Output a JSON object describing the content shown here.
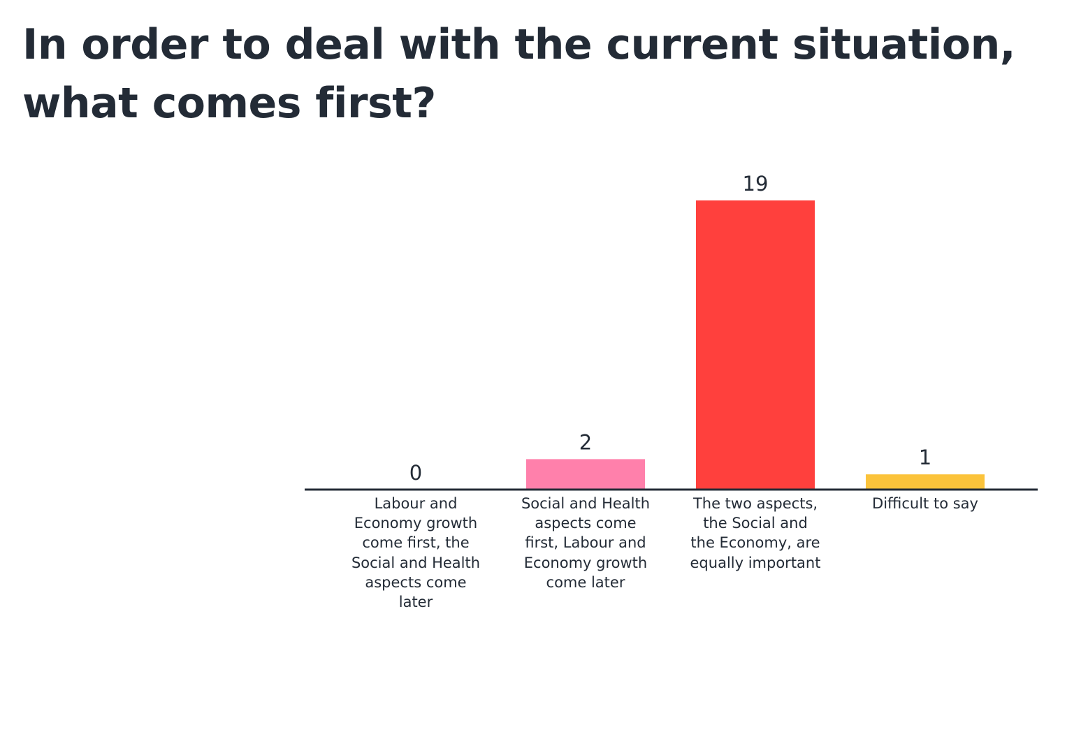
{
  "title": "In order to deal with the current situation, what comes first?",
  "chart_data": {
    "type": "bar",
    "title": "In order to deal with the current situation, what comes first?",
    "xlabel": "",
    "ylabel": "",
    "categories": [
      "Labour and Economy growth come first, the Social and Health aspects come later",
      "Social and Health aspects come first, Labour and Economy growth come later",
      "The two aspects, the Social and the Economy, are equally important",
      "Difficult to say"
    ],
    "values": [
      0,
      2,
      19,
      1
    ],
    "colors": [
      "#232b36",
      "#ff80ab",
      "#ff403d",
      "#fbc33b"
    ],
    "ylim": [
      0,
      19
    ],
    "grid": false,
    "legend": "none",
    "axis_color": "#232b36"
  }
}
